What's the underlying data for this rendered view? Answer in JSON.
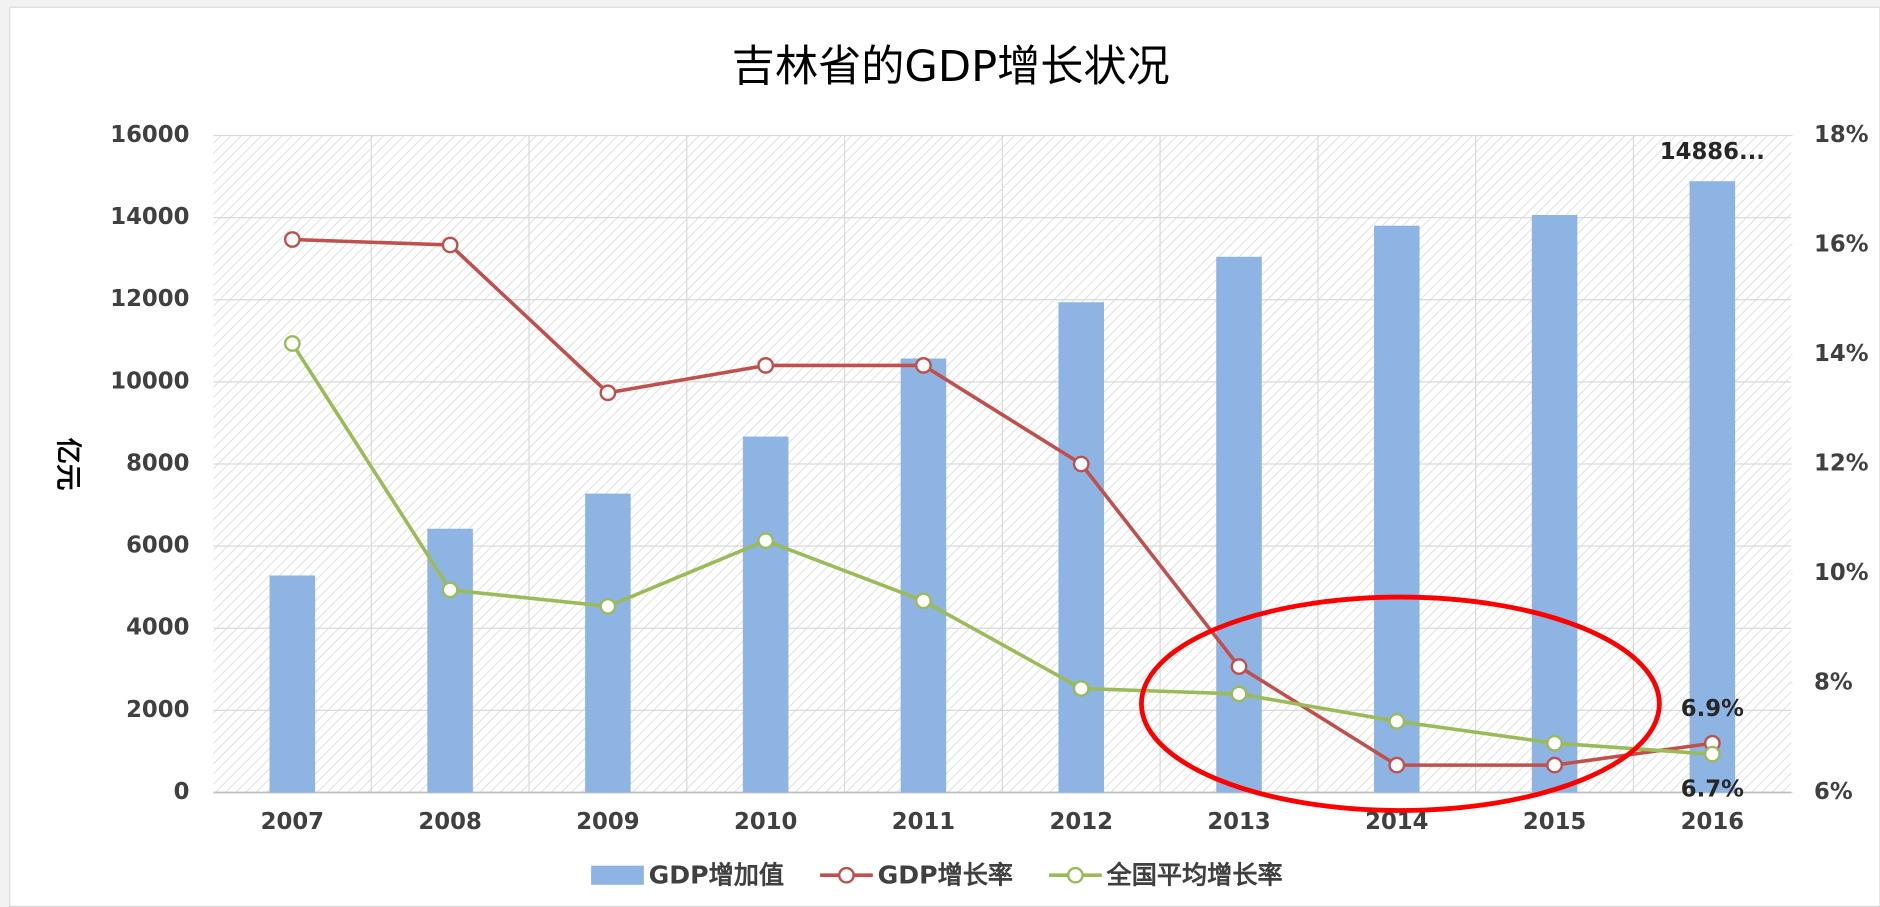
{
  "chart_data": {
    "type": "bar-line",
    "title": "吉林省的GDP增长状况",
    "y_label": "亿元",
    "categories": [
      "2007",
      "2008",
      "2009",
      "2010",
      "2011",
      "2012",
      "2013",
      "2014",
      "2015",
      "2016"
    ],
    "series": [
      {
        "name": "GDP增加值",
        "type": "bar",
        "color": "#8eb4e3",
        "values": [
          5285,
          6424,
          7279,
          8668,
          10569,
          11939,
          13046,
          13803,
          14063,
          14886
        ],
        "value_labels": [
          null,
          null,
          null,
          null,
          null,
          null,
          null,
          null,
          null,
          "14886..."
        ]
      },
      {
        "name": "GDP增长率",
        "type": "line",
        "axis": "y2",
        "color": "#c0504d",
        "values": [
          16.1,
          16.0,
          13.3,
          13.8,
          13.8,
          12.0,
          8.3,
          6.5,
          6.5,
          6.9
        ],
        "value_labels": [
          null,
          null,
          null,
          null,
          null,
          null,
          null,
          null,
          null,
          "6.9%"
        ]
      },
      {
        "name": "全国平均增长率",
        "type": "line",
        "axis": "y2",
        "color": "#9bbb59",
        "values": [
          14.2,
          9.7,
          9.4,
          10.6,
          9.5,
          7.9,
          7.8,
          7.3,
          6.9,
          6.7
        ],
        "value_labels": [
          null,
          null,
          null,
          null,
          null,
          null,
          null,
          null,
          null,
          "6.7%"
        ]
      }
    ],
    "ylim": [
      0,
      16000
    ],
    "yticks": [
      0,
      2000,
      4000,
      6000,
      8000,
      10000,
      12000,
      14000,
      16000
    ],
    "y2lim": [
      6,
      18
    ],
    "y2ticks": [
      {
        "value": 6,
        "label": "6%"
      },
      {
        "value": 8,
        "label": "8%"
      },
      {
        "value": 10,
        "label": "10%"
      },
      {
        "value": 12,
        "label": "12%"
      },
      {
        "value": 14,
        "label": "14%"
      },
      {
        "value": 16,
        "label": "16%"
      },
      {
        "value": 18,
        "label": "18%"
      }
    ],
    "grid": true,
    "legend": "bottom"
  }
}
